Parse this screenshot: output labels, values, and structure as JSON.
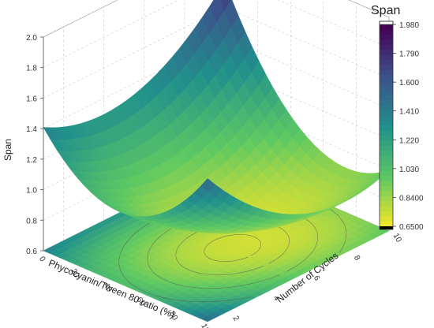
{
  "chart_data": {
    "type": "surface3d",
    "z_label": "Span",
    "x_label": "Phycocyanin/Tween 80 ratio (%)",
    "y_label": "Number of Cycles",
    "x_ticks": [
      "0",
      "20",
      "40",
      "60",
      "80",
      "100"
    ],
    "y_ticks": [
      "2",
      "4",
      "6",
      "8",
      "10"
    ],
    "z_ticks": [
      "0.6",
      "0.8",
      "1.0",
      "1.2",
      "1.4",
      "1.6",
      "1.8",
      "2.0"
    ],
    "x_range": [
      0,
      100
    ],
    "y_range": [
      1,
      10
    ],
    "z_range": [
      0.6,
      2.0
    ],
    "colorbar": {
      "title": "Span",
      "labels": [
        "1.980",
        "1.790",
        "1.600",
        "1.410",
        "1.220",
        "1.030",
        "0.8400",
        "0.6500"
      ]
    },
    "surface_model": {
      "description_points": [
        {
          "x": 0,
          "y": 1,
          "z": 1.98
        },
        {
          "x": 0,
          "y": 10,
          "z": 1.2
        },
        {
          "x": 100,
          "y": 1,
          "z": 1.05
        },
        {
          "x": 100,
          "y": 10,
          "z": 1.0
        },
        {
          "x": 60,
          "y": 5,
          "z": 0.72
        }
      ]
    },
    "colormap": [
      "#440154",
      "#3b528b",
      "#21918c",
      "#5ec962",
      "#fde725"
    ],
    "grid": true,
    "contour_projection": true
  }
}
